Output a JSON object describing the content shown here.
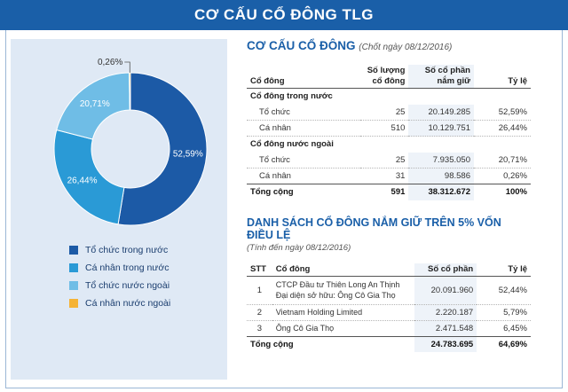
{
  "banner": {
    "title": "CƠ CẤU CỔ ĐÔNG TLG"
  },
  "chart_data": {
    "type": "pie",
    "donut": true,
    "title": "",
    "categories": [
      "Tổ chức trong nước",
      "Cá nhân trong nước",
      "Tổ chức nước ngoài",
      "Cá nhân nước ngoài"
    ],
    "values": [
      52.59,
      26.44,
      20.71,
      0.26
    ],
    "labels": [
      "52,59%",
      "26,44%",
      "20,71%",
      "0,26%"
    ],
    "colors": [
      "#1c5aa6",
      "#2a9ad6",
      "#6fbde6",
      "#f5b335"
    ],
    "legend_placement": "bottom"
  },
  "structure": {
    "title": "CƠ CẤU CỔ ĐÔNG",
    "note": "(Chốt ngày 08/12/2016)",
    "headers": {
      "name": "Cổ đông",
      "count_line1": "Số lượng",
      "count_line2": "cổ đông",
      "shares_line1": "Số cổ phần",
      "shares_line2": "nắm giữ",
      "ratio": "Tỷ lệ"
    },
    "domestic_label": "Cổ đông trong nước",
    "domestic": [
      {
        "name": "Tổ chức",
        "count": "25",
        "shares": "20.149.285",
        "ratio": "52,59%"
      },
      {
        "name": "Cá nhân",
        "count": "510",
        "shares": "10.129.751",
        "ratio": "26,44%"
      }
    ],
    "foreign_label": "Cổ đông nước ngoài",
    "foreign": [
      {
        "name": "Tổ chức",
        "count": "25",
        "shares": "7.935.050",
        "ratio": "20,71%"
      },
      {
        "name": "Cá nhân",
        "count": "31",
        "shares": "98.586",
        "ratio": "0,26%"
      }
    ],
    "total": {
      "name": "Tổng cộng",
      "count": "591",
      "shares": "38.312.672",
      "ratio": "100%"
    }
  },
  "major": {
    "title": "DANH SÁCH CỔ ĐÔNG NẮM GIỮ TRÊN 5% VỐN ĐIỀU LỆ",
    "note": "(Tính đến ngày 08/12/2016)",
    "headers": {
      "stt": "STT",
      "name": "Cổ đông",
      "shares": "Số cổ phần",
      "ratio": "Tỷ lệ"
    },
    "rows": [
      {
        "stt": "1",
        "name_line1": "CTCP Đầu tư Thiên Long An Thịnh",
        "name_line2": "Đại diện sở hữu: Ông Cô Gia Thọ",
        "shares": "20.091.960",
        "ratio": "52,44%"
      },
      {
        "stt": "2",
        "name_line1": "Vietnam Holding Limited",
        "name_line2": "",
        "shares": "2.220.187",
        "ratio": "5,79%"
      },
      {
        "stt": "3",
        "name_line1": "Ông Cô Gia Thọ",
        "name_line2": "",
        "shares": "2.471.548",
        "ratio": "6,45%"
      }
    ],
    "total": {
      "name": "Tổng cộng",
      "shares": "24.783.695",
      "ratio": "64,69%"
    }
  }
}
